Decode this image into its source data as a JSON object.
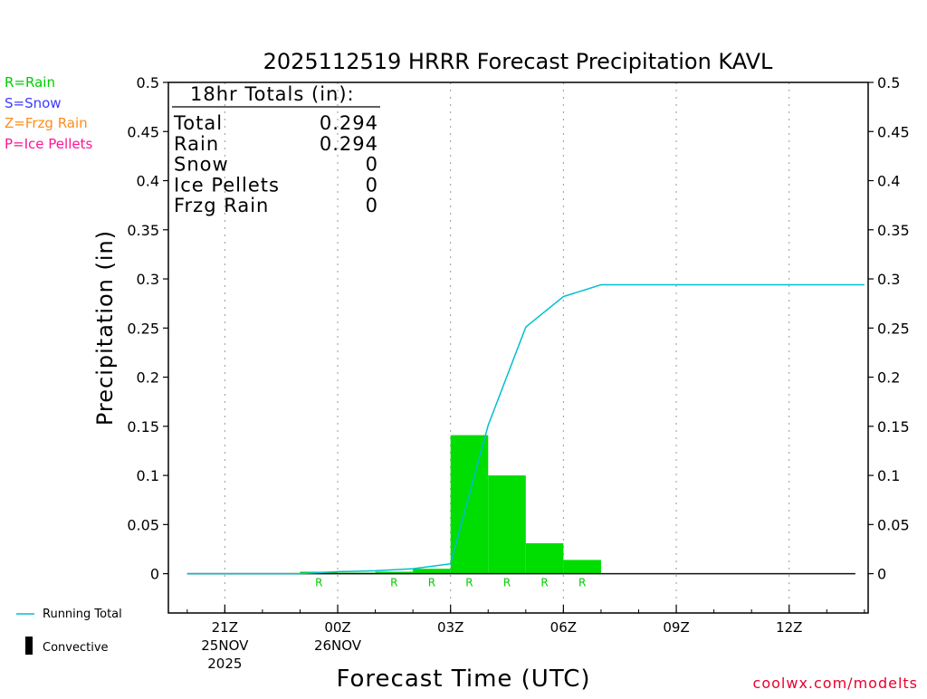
{
  "chart_data": {
    "type": "bar",
    "title": "2025112519 HRRR Forecast Precipitation KAVL",
    "xlabel": "Forecast Time (UTC)",
    "ylabel": "Precipitation (in)",
    "ylim": [
      -0.04,
      0.5
    ],
    "yticks": [
      "0.5",
      "0.45",
      "0.4",
      "0.35",
      "0.3",
      "0.25",
      "0.2",
      "0.15",
      "0.1",
      "0.05",
      "0"
    ],
    "ytick_values": [
      0.5,
      0.45,
      0.4,
      0.35,
      0.3,
      0.25,
      0.2,
      0.15,
      0.1,
      0.05,
      0
    ],
    "xlim": [
      19.5,
      38.1
    ],
    "xticks": [
      {
        "hour": 21,
        "label": "21Z",
        "date": "25NOV",
        "year": "2025"
      },
      {
        "hour": 24,
        "label": "00Z",
        "date": "26NOV",
        "year": ""
      },
      {
        "hour": 27,
        "label": "03Z",
        "date": "",
        "year": ""
      },
      {
        "hour": 30,
        "label": "06Z",
        "date": "",
        "year": ""
      },
      {
        "hour": 33,
        "label": "09Z",
        "date": "",
        "year": ""
      },
      {
        "hour": 36,
        "label": "12Z",
        "date": "",
        "year": ""
      }
    ],
    "hourly_precip": {
      "hours": [
        20,
        21,
        22,
        23,
        24,
        25,
        26,
        27,
        28,
        29,
        30,
        31,
        32,
        33,
        34,
        35,
        36,
        37
      ],
      "values": [
        0,
        0,
        0,
        0.002,
        0.001,
        0.002,
        0.005,
        0.141,
        0.1,
        0.031,
        0.014,
        0,
        0,
        0,
        0,
        0,
        0,
        0
      ]
    },
    "running_total": {
      "name": "Running Total",
      "hours": [
        20,
        21,
        22,
        23,
        24,
        25,
        26,
        27,
        28,
        29,
        30,
        31,
        32,
        33,
        34,
        35,
        36,
        37,
        38
      ],
      "values": [
        0,
        0,
        0,
        0,
        0.002,
        0.003,
        0.005,
        0.01,
        0.151,
        0.251,
        0.282,
        0.294,
        0.294,
        0.294,
        0.294,
        0.294,
        0.294,
        0.294,
        0.294
      ]
    },
    "precip_type_markers": {
      "hours": [
        23,
        25,
        26,
        27,
        28,
        29,
        30
      ],
      "label": "R"
    },
    "colors": {
      "rain": "#00dd00",
      "running_total": "#00bfcf",
      "snow": "#3333ff",
      "frzg": "#ff8c1a",
      "ice": "#ff1493"
    }
  },
  "legend": {
    "types": [
      {
        "text": "R=Rain",
        "color": "#00cc00"
      },
      {
        "text": "S=Snow",
        "color": "#3b3bff"
      },
      {
        "text": "Z=Frzg Rain",
        "color": "#ff8c1a"
      },
      {
        "text": "P=Ice Pellets",
        "color": "#ff1493"
      }
    ],
    "running_total": "Running Total",
    "convective": "Convective"
  },
  "totals": {
    "header": "18hr Totals (in):",
    "rows": [
      {
        "label": "Total",
        "value": "0.294"
      },
      {
        "label": "Rain",
        "value": "0.294"
      },
      {
        "label": "Snow",
        "value": "0"
      },
      {
        "label": "Ice Pellets",
        "value": "0"
      },
      {
        "label": "Frzg Rain",
        "value": "0"
      }
    ]
  },
  "watermark": "coolwx.com/modelts"
}
